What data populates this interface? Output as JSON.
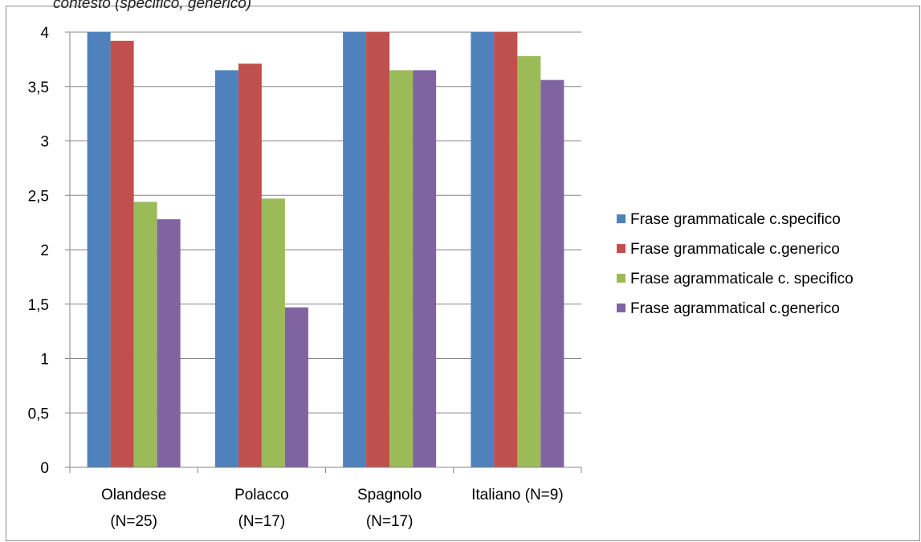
{
  "caption": "contesto (specifico, generico)",
  "chart_data": {
    "type": "bar",
    "categories": [
      [
        "Olandese",
        "(N=25)"
      ],
      [
        "Polacco",
        "(N=17)"
      ],
      [
        "Spagnolo",
        "(N=17)"
      ],
      [
        "Italiano (N=9)"
      ]
    ],
    "series": [
      {
        "name": "Frase grammaticale c.specifico",
        "color": "#4f81bd",
        "values": [
          4.0,
          3.65,
          4.0,
          4.0
        ]
      },
      {
        "name": "Frase grammaticale c.generico",
        "color": "#c0504d",
        "values": [
          3.92,
          3.71,
          4.0,
          4.0
        ]
      },
      {
        "name": "Frase agrammaticale c. specifico",
        "color": "#9bbb59",
        "values": [
          2.44,
          2.47,
          3.65,
          3.78
        ]
      },
      {
        "name": "Frase agrammatical c.generico",
        "color": "#8064a2",
        "values": [
          2.28,
          1.47,
          3.65,
          3.56
        ]
      }
    ],
    "y_ticks": [
      "0",
      "0,5",
      "1",
      "1,5",
      "2",
      "2,5",
      "3",
      "3,5",
      "4"
    ],
    "ylim": [
      0,
      4
    ],
    "grid": true,
    "legend": "right"
  }
}
